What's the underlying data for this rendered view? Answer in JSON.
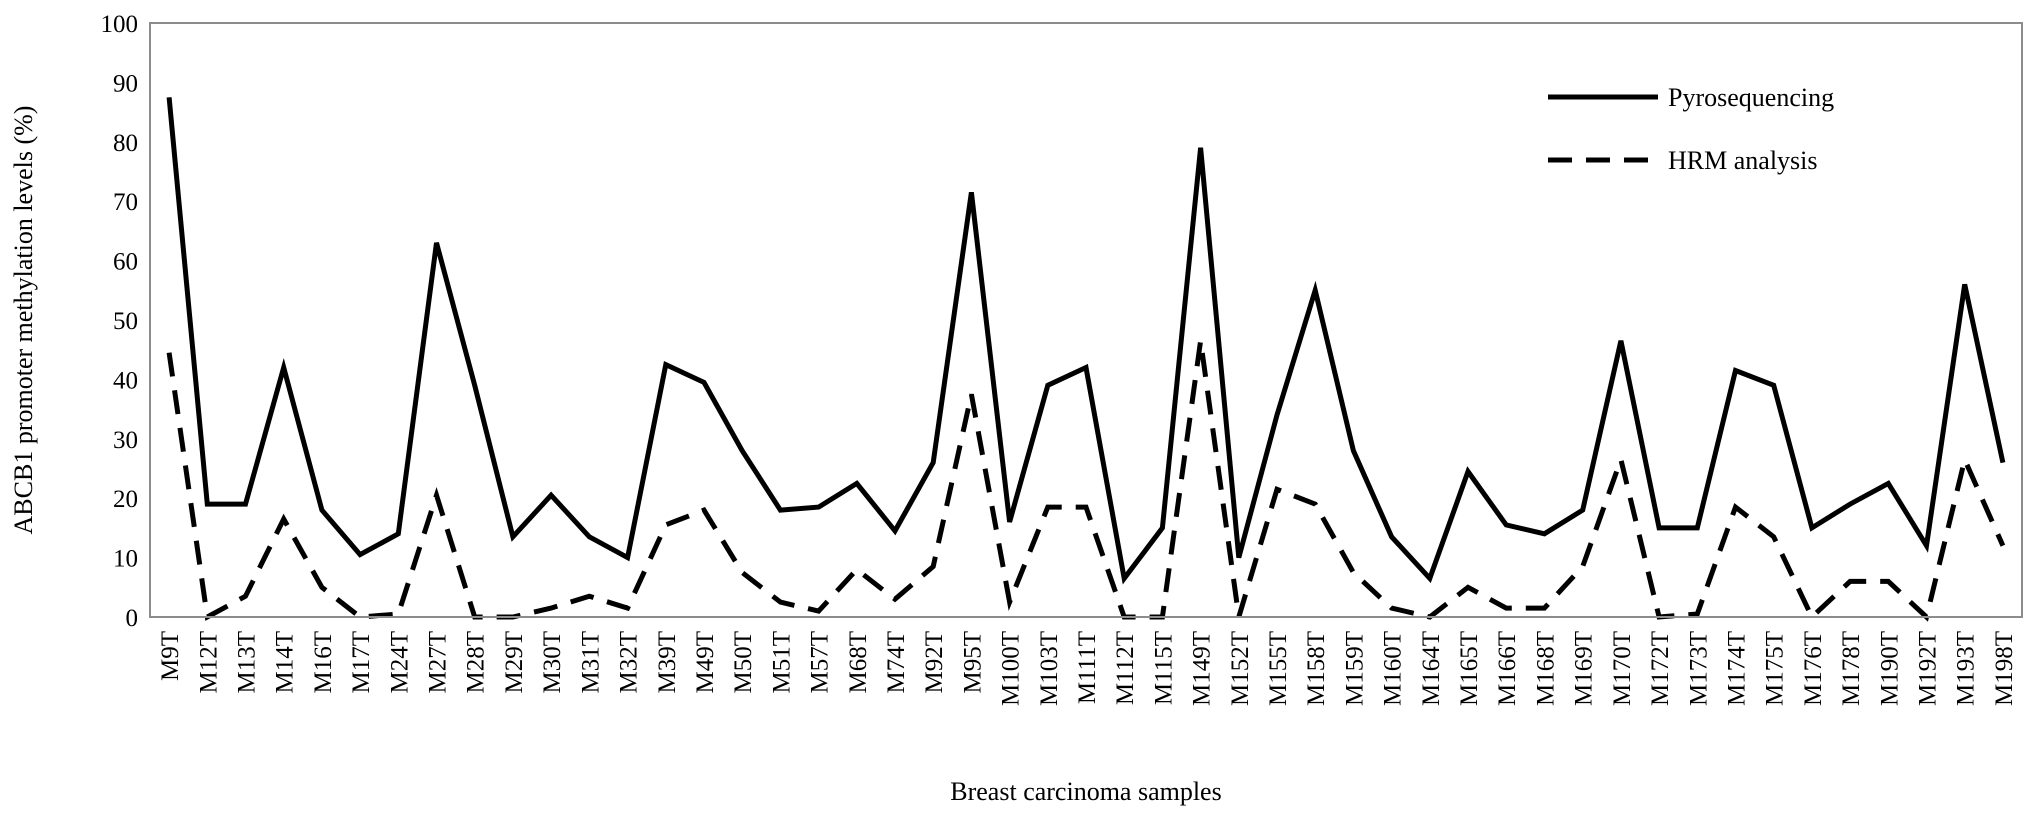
{
  "chart_data": {
    "type": "line",
    "title": "",
    "xlabel": "Breast carcinoma samples",
    "ylabel": "ABCB1 promoter methylation levels (%)",
    "ylim": [
      0,
      100
    ],
    "yticks": [
      "0",
      "10",
      "20",
      "30",
      "40",
      "50",
      "60",
      "70",
      "80",
      "90",
      "100"
    ],
    "grid": false,
    "legend_position": "top-right",
    "categories": [
      "M9T",
      "M12T",
      "M13T",
      "M14T",
      "M16T",
      "M17T",
      "M24T",
      "M27T",
      "M28T",
      "M29T",
      "M30T",
      "M31T",
      "M32T",
      "M39T",
      "M49T",
      "M50T",
      "M51T",
      "M57T",
      "M68T",
      "M74T",
      "M92T",
      "M95T",
      "M100T",
      "M103T",
      "M111T",
      "M112T",
      "M115T",
      "M149T",
      "M152T",
      "M155T",
      "M158T",
      "M159T",
      "M160T",
      "M164T",
      "M165T",
      "M166T",
      "M168T",
      "M169T",
      "M170T",
      "M172T",
      "M173T",
      "M174T",
      "M175T",
      "M176T",
      "M178T",
      "M190T",
      "M192T",
      "M193T",
      "M198T"
    ],
    "series": [
      {
        "name": "Pyrosequencing",
        "line_style": "solid",
        "color": "#000000",
        "values": [
          87.5,
          19,
          19,
          42,
          18,
          10.5,
          14,
          63,
          39,
          13.5,
          20.5,
          13.5,
          10,
          42.5,
          39.5,
          28,
          18,
          18.5,
          22.5,
          14.5,
          26,
          71.5,
          16,
          39,
          42,
          6.5,
          15,
          79,
          10,
          34,
          55,
          28,
          13.5,
          6.5,
          24.5,
          15.5,
          14,
          18,
          46.5,
          15,
          15,
          41.5,
          39,
          15,
          19,
          22.5,
          12,
          56,
          26
        ]
      },
      {
        "name": "HRM analysis",
        "line_style": "dashed",
        "color": "#000000",
        "values": [
          44.5,
          0,
          3.5,
          16.5,
          5,
          0,
          0.5,
          20.5,
          0,
          0,
          1.5,
          3.5,
          1.5,
          15.5,
          18,
          7.5,
          2.5,
          1,
          8,
          3,
          8.5,
          37.5,
          2.5,
          18.5,
          18.5,
          0,
          0,
          46.5,
          0,
          21.5,
          19,
          7.5,
          1.5,
          0,
          5,
          1.5,
          1.5,
          8.5,
          26.5,
          0,
          0.5,
          18.5,
          13.5,
          0,
          6,
          6,
          0,
          26.5,
          12
        ]
      }
    ]
  }
}
